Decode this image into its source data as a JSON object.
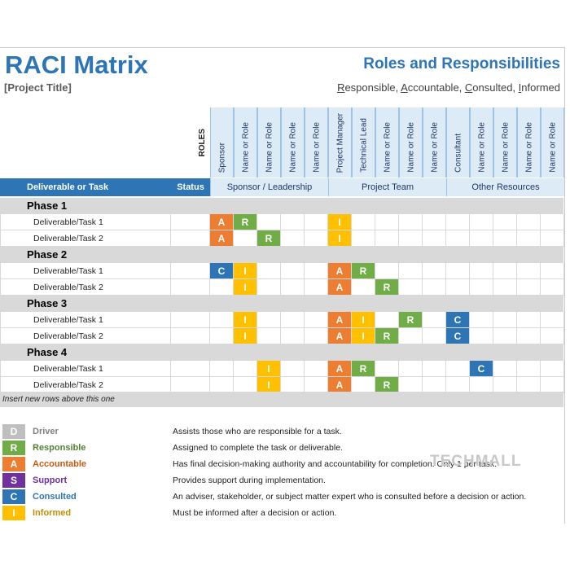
{
  "header": {
    "title": "RACI Matrix",
    "project_title": "[Project Title]",
    "subtitle": "Roles and Responsibilities",
    "raci_line": {
      "r_first": "R",
      "r_rest": "esponsible, ",
      "a_first": "A",
      "a_rest": "ccountable, ",
      "c_first": "C",
      "c_rest": "onsulted, ",
      "i_first": "I",
      "i_rest": "nformed"
    }
  },
  "roles_label": "ROLES",
  "roles": [
    "Sponsor",
    "Name or Role",
    "Name or Role",
    "Name or Role",
    "Name or Role",
    "Project Manager",
    "Technical Lead",
    "Name or Role",
    "Name or Role",
    "Name or Role",
    "Consultant",
    "Name or Role",
    "Name or Role",
    "Name or Role",
    "Name or Role"
  ],
  "columns": {
    "task": "Deliverable or Task",
    "status": "Status"
  },
  "groups": [
    "Sponsor / Leadership",
    "Project Team",
    "Other Resources"
  ],
  "phases": [
    {
      "name": "Phase 1",
      "tasks": [
        {
          "label": "Deliverable/Task 1",
          "marks": [
            "A",
            "R",
            "",
            "",
            "",
            "I",
            "",
            "",
            "",
            "",
            "",
            "",
            "",
            "",
            ""
          ]
        },
        {
          "label": "Deliverable/Task 2",
          "marks": [
            "A",
            "",
            "R",
            "",
            "",
            "I",
            "",
            "",
            "",
            "",
            "",
            "",
            "",
            "",
            ""
          ]
        }
      ]
    },
    {
      "name": "Phase 2",
      "tasks": [
        {
          "label": "Deliverable/Task 1",
          "marks": [
            "C",
            "I",
            "",
            "",
            "",
            "A",
            "R",
            "",
            "",
            "",
            "",
            "",
            "",
            "",
            ""
          ]
        },
        {
          "label": "Deliverable/Task 2",
          "marks": [
            "",
            "I",
            "",
            "",
            "",
            "A",
            "",
            "R",
            "",
            "",
            "",
            "",
            "",
            "",
            ""
          ]
        }
      ]
    },
    {
      "name": "Phase 3",
      "tasks": [
        {
          "label": "Deliverable/Task 1",
          "marks": [
            "",
            "I",
            "",
            "",
            "",
            "A",
            "I",
            "",
            "R",
            "",
            "C",
            "",
            "",
            "",
            ""
          ]
        },
        {
          "label": "Deliverable/Task 2",
          "marks": [
            "",
            "I",
            "",
            "",
            "",
            "A",
            "I",
            "R",
            "",
            "",
            "C",
            "",
            "",
            "",
            ""
          ]
        }
      ]
    },
    {
      "name": "Phase 4",
      "tasks": [
        {
          "label": "Deliverable/Task 1",
          "marks": [
            "",
            "",
            "I",
            "",
            "",
            "A",
            "R",
            "",
            "",
            "",
            "",
            "C",
            "",
            "",
            ""
          ]
        },
        {
          "label": "Deliverable/Task 2",
          "marks": [
            "",
            "",
            "I",
            "",
            "",
            "A",
            "",
            "R",
            "",
            "",
            "",
            "",
            "",
            "",
            ""
          ]
        }
      ]
    }
  ],
  "insert_note": "Insert new rows above this one",
  "mark_colors": {
    "D": "#bfbfbf",
    "R": "#70ad47",
    "A": "#ed7d31",
    "S": "#7030a0",
    "C": "#2e75b6",
    "I": "#ffc000"
  },
  "legend": [
    {
      "code": "D",
      "name": "Driver",
      "name_color": "#7f7f7f",
      "desc": "Assists those who are responsible for a task."
    },
    {
      "code": "R",
      "name": "Responsible",
      "name_color": "#548235",
      "desc": "Assigned to complete the task or deliverable."
    },
    {
      "code": "A",
      "name": "Accountable",
      "name_color": "#c55a11",
      "desc": "Has final decision-making authority and accountability for completion. Only 1 per task."
    },
    {
      "code": "S",
      "name": "Support",
      "name_color": "#7030a0",
      "desc": "Provides support during implementation."
    },
    {
      "code": "C",
      "name": "Consulted",
      "name_color": "#2e75b6",
      "desc": "An adviser, stakeholder, or subject matter expert who is consulted before a decision or action."
    },
    {
      "code": "I",
      "name": "Informed",
      "name_color": "#bf8f00",
      "desc": "Must be informed after a decision or action."
    }
  ],
  "watermark": "TECHMALL"
}
